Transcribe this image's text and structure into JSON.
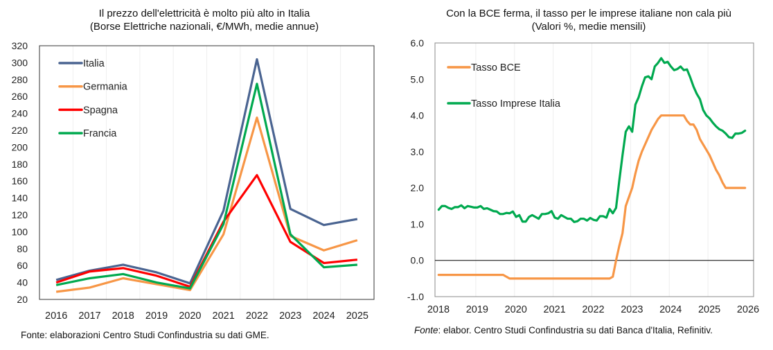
{
  "chart_data": [
    {
      "type": "line",
      "title": "Il prezzo dell'elettricità è molto più alto in Italia",
      "subtitle": "(Borse Elettriche nazionali, €/MWh, medie annue)",
      "xlabel": "",
      "ylabel": "",
      "categories": [
        "2016",
        "2017",
        "2018",
        "2019",
        "2020",
        "2021",
        "2022",
        "2023",
        "2024",
        "2025"
      ],
      "ylim": [
        20,
        320
      ],
      "yticks": [
        "320",
        "300",
        "280",
        "260",
        "240",
        "220",
        "200",
        "180",
        "160",
        "140",
        "120",
        "100",
        "80",
        "60",
        "40",
        "20"
      ],
      "legend": "top-left",
      "series": [
        {
          "name": "Italia",
          "color": "#4a6491",
          "values": [
            43,
            54,
            61,
            52,
            39,
            125,
            304,
            127,
            108,
            115
          ]
        },
        {
          "name": "Germania",
          "color": "#f79646",
          "values": [
            29,
            34,
            45,
            38,
            31,
            97,
            235,
            95,
            78,
            90
          ]
        },
        {
          "name": "Spagna",
          "color": "#ff0000",
          "values": [
            40,
            53,
            57,
            48,
            35,
            112,
            167,
            88,
            63,
            67
          ]
        },
        {
          "name": "Francia",
          "color": "#00a94f",
          "values": [
            37,
            45,
            50,
            40,
            33,
            109,
            275,
            97,
            58,
            61
          ]
        }
      ],
      "source": "Fonte: elaborazioni Centro Studi Confindustria su dati GME."
    },
    {
      "type": "line",
      "title": "Con la BCE ferma, il tasso per le imprese italiane non cala più",
      "subtitle": "(Valori %, medie mensili)",
      "xlabel": "",
      "ylabel": "",
      "xticks": [
        "2018",
        "2019",
        "2020",
        "2021",
        "2022",
        "2023",
        "2024",
        "2025",
        "2026"
      ],
      "x_start": "2018-01",
      "frequency": "monthly",
      "ylim": [
        -1.0,
        6.0
      ],
      "yticks": [
        "6.0",
        "5.0",
        "4.0",
        "3.0",
        "2.0",
        "1.0",
        "0.0",
        "-1.0"
      ],
      "legend": "top-left",
      "series": [
        {
          "name": "Tasso BCE",
          "color": "#f79646",
          "values": [
            -0.4,
            -0.4,
            -0.4,
            -0.4,
            -0.4,
            -0.4,
            -0.4,
            -0.4,
            -0.4,
            -0.4,
            -0.4,
            -0.4,
            -0.4,
            -0.4,
            -0.4,
            -0.4,
            -0.4,
            -0.4,
            -0.4,
            -0.4,
            -0.4,
            -0.45,
            -0.5,
            -0.5,
            -0.5,
            -0.5,
            -0.5,
            -0.5,
            -0.5,
            -0.5,
            -0.5,
            -0.5,
            -0.5,
            -0.5,
            -0.5,
            -0.5,
            -0.5,
            -0.5,
            -0.5,
            -0.5,
            -0.5,
            -0.5,
            -0.5,
            -0.5,
            -0.5,
            -0.5,
            -0.5,
            -0.5,
            -0.5,
            -0.5,
            -0.5,
            -0.5,
            -0.5,
            -0.5,
            -0.45,
            0.0,
            0.4,
            0.75,
            1.5,
            1.75,
            2.0,
            2.4,
            2.75,
            3.0,
            3.2,
            3.4,
            3.6,
            3.75,
            3.9,
            4.0,
            4.0,
            4.0,
            4.0,
            4.0,
            4.0,
            4.0,
            4.0,
            3.85,
            3.75,
            3.75,
            3.6,
            3.35,
            3.2,
            3.05,
            2.9,
            2.7,
            2.5,
            2.35,
            2.15,
            2.0,
            2.0,
            2.0,
            2.0,
            2.0,
            2.0,
            2.0
          ]
        },
        {
          "name": "Tasso Imprese Italia",
          "color": "#00a94f",
          "values": [
            1.4,
            1.5,
            1.5,
            1.45,
            1.42,
            1.47,
            1.47,
            1.52,
            1.44,
            1.5,
            1.48,
            1.46,
            1.46,
            1.5,
            1.42,
            1.44,
            1.4,
            1.36,
            1.35,
            1.28,
            1.28,
            1.31,
            1.3,
            1.35,
            1.2,
            1.25,
            1.07,
            1.07,
            1.2,
            1.25,
            1.2,
            1.15,
            1.28,
            1.28,
            1.3,
            1.36,
            1.18,
            1.15,
            1.25,
            1.2,
            1.15,
            1.15,
            1.06,
            1.08,
            1.15,
            1.15,
            1.1,
            1.17,
            1.12,
            1.1,
            1.22,
            1.22,
            1.18,
            1.42,
            1.3,
            1.45,
            2.2,
            2.9,
            3.55,
            3.7,
            3.55,
            4.3,
            4.5,
            4.8,
            5.05,
            5.08,
            5.0,
            5.35,
            5.45,
            5.58,
            5.45,
            5.48,
            5.35,
            5.25,
            5.28,
            5.35,
            5.25,
            5.27,
            5.05,
            4.8,
            4.6,
            4.45,
            4.15,
            4.0,
            3.92,
            3.8,
            3.7,
            3.62,
            3.58,
            3.5,
            3.4,
            3.38,
            3.5,
            3.5,
            3.52,
            3.58
          ]
        }
      ],
      "source_label": "Fonte",
      "source": ": elabor. Centro Studi Confindustria su dati Banca d'Italia, Refinitiv."
    }
  ]
}
